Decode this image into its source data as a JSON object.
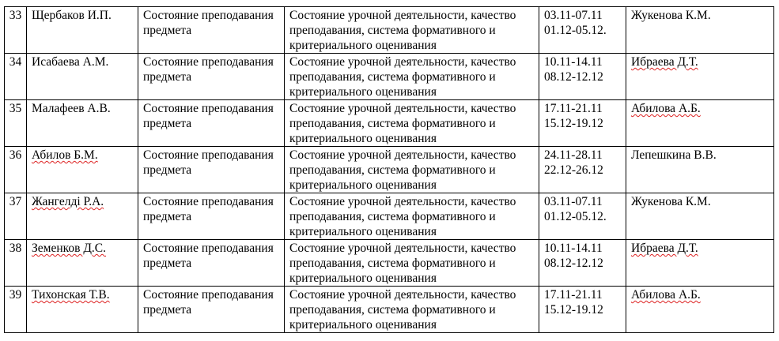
{
  "rows": [
    {
      "num": "33",
      "name": "Щербаков И.П.",
      "name_flagged": false,
      "subject": "Состояние преподавания предмета",
      "description": "Состояние урочной деятельности, качество преподавания, система формативного и критериального оценивания",
      "dates": [
        "03.11-07.11",
        "01.12-05.12."
      ],
      "responsible": "Жукенова К.М.",
      "responsible_flagged": false
    },
    {
      "num": "34",
      "name": "Исабаева А.М.",
      "name_flagged": false,
      "subject": "Состояние преподавания предмета",
      "description": "Состояние урочной деятельности, качество преподавания, система формативного и критериального оценивания",
      "dates": [
        "10.11-14.11",
        "08.12-12.12"
      ],
      "responsible": "Ибраева Д.Т.",
      "responsible_flagged": true
    },
    {
      "num": "35",
      "name": "Малафеев А.В.",
      "name_flagged": false,
      "subject": "Состояние преподавания предмета",
      "description": "Состояние урочной деятельности, качество преподавания, система формативного и критериального оценивания",
      "dates": [
        "17.11-21.11",
        "15.12-19.12"
      ],
      "responsible": "Абилова А.Б.",
      "responsible_flagged": true
    },
    {
      "num": "36",
      "name": "Абилов Б.М.",
      "name_flagged": true,
      "subject": "Состояние преподавания предмета",
      "description": "Состояние урочной деятельности, качество преподавания, система формативного и критериального оценивания",
      "dates": [
        "24.11-28.11",
        "22.12-26.12"
      ],
      "responsible": "Лепешкина В.В.",
      "responsible_flagged": false
    },
    {
      "num": "37",
      "name": "Жангелді Р.А.",
      "name_flagged": true,
      "subject": "Состояние преподавания предмета",
      "description": "Состояние урочной деятельности, качество преподавания, система формативного и критериального оценивания",
      "dates": [
        "03.11-07.11",
        "01.12-05.12."
      ],
      "responsible": "Жукенова К.М.",
      "responsible_flagged": false
    },
    {
      "num": "38",
      "name": "Земенков Д.С.",
      "name_flagged": true,
      "subject": "Состояние преподавания предмета",
      "description": "Состояние урочной деятельности, качество преподавания, система формативного и критериального оценивания",
      "dates": [
        "10.11-14.11",
        "08.12-12.12"
      ],
      "responsible": "Ибраева Д.Т.",
      "responsible_flagged": true
    },
    {
      "num": "39",
      "name": "Тихонская Т.В.",
      "name_flagged": true,
      "subject": "Состояние преподавания предмета",
      "description": "Состояние урочной деятельности, качество преподавания, система формативного и критериального оценивания",
      "dates": [
        "17.11-21.11",
        "15.12-19.12"
      ],
      "responsible": "Абилова А.Б.",
      "responsible_flagged": true
    }
  ]
}
